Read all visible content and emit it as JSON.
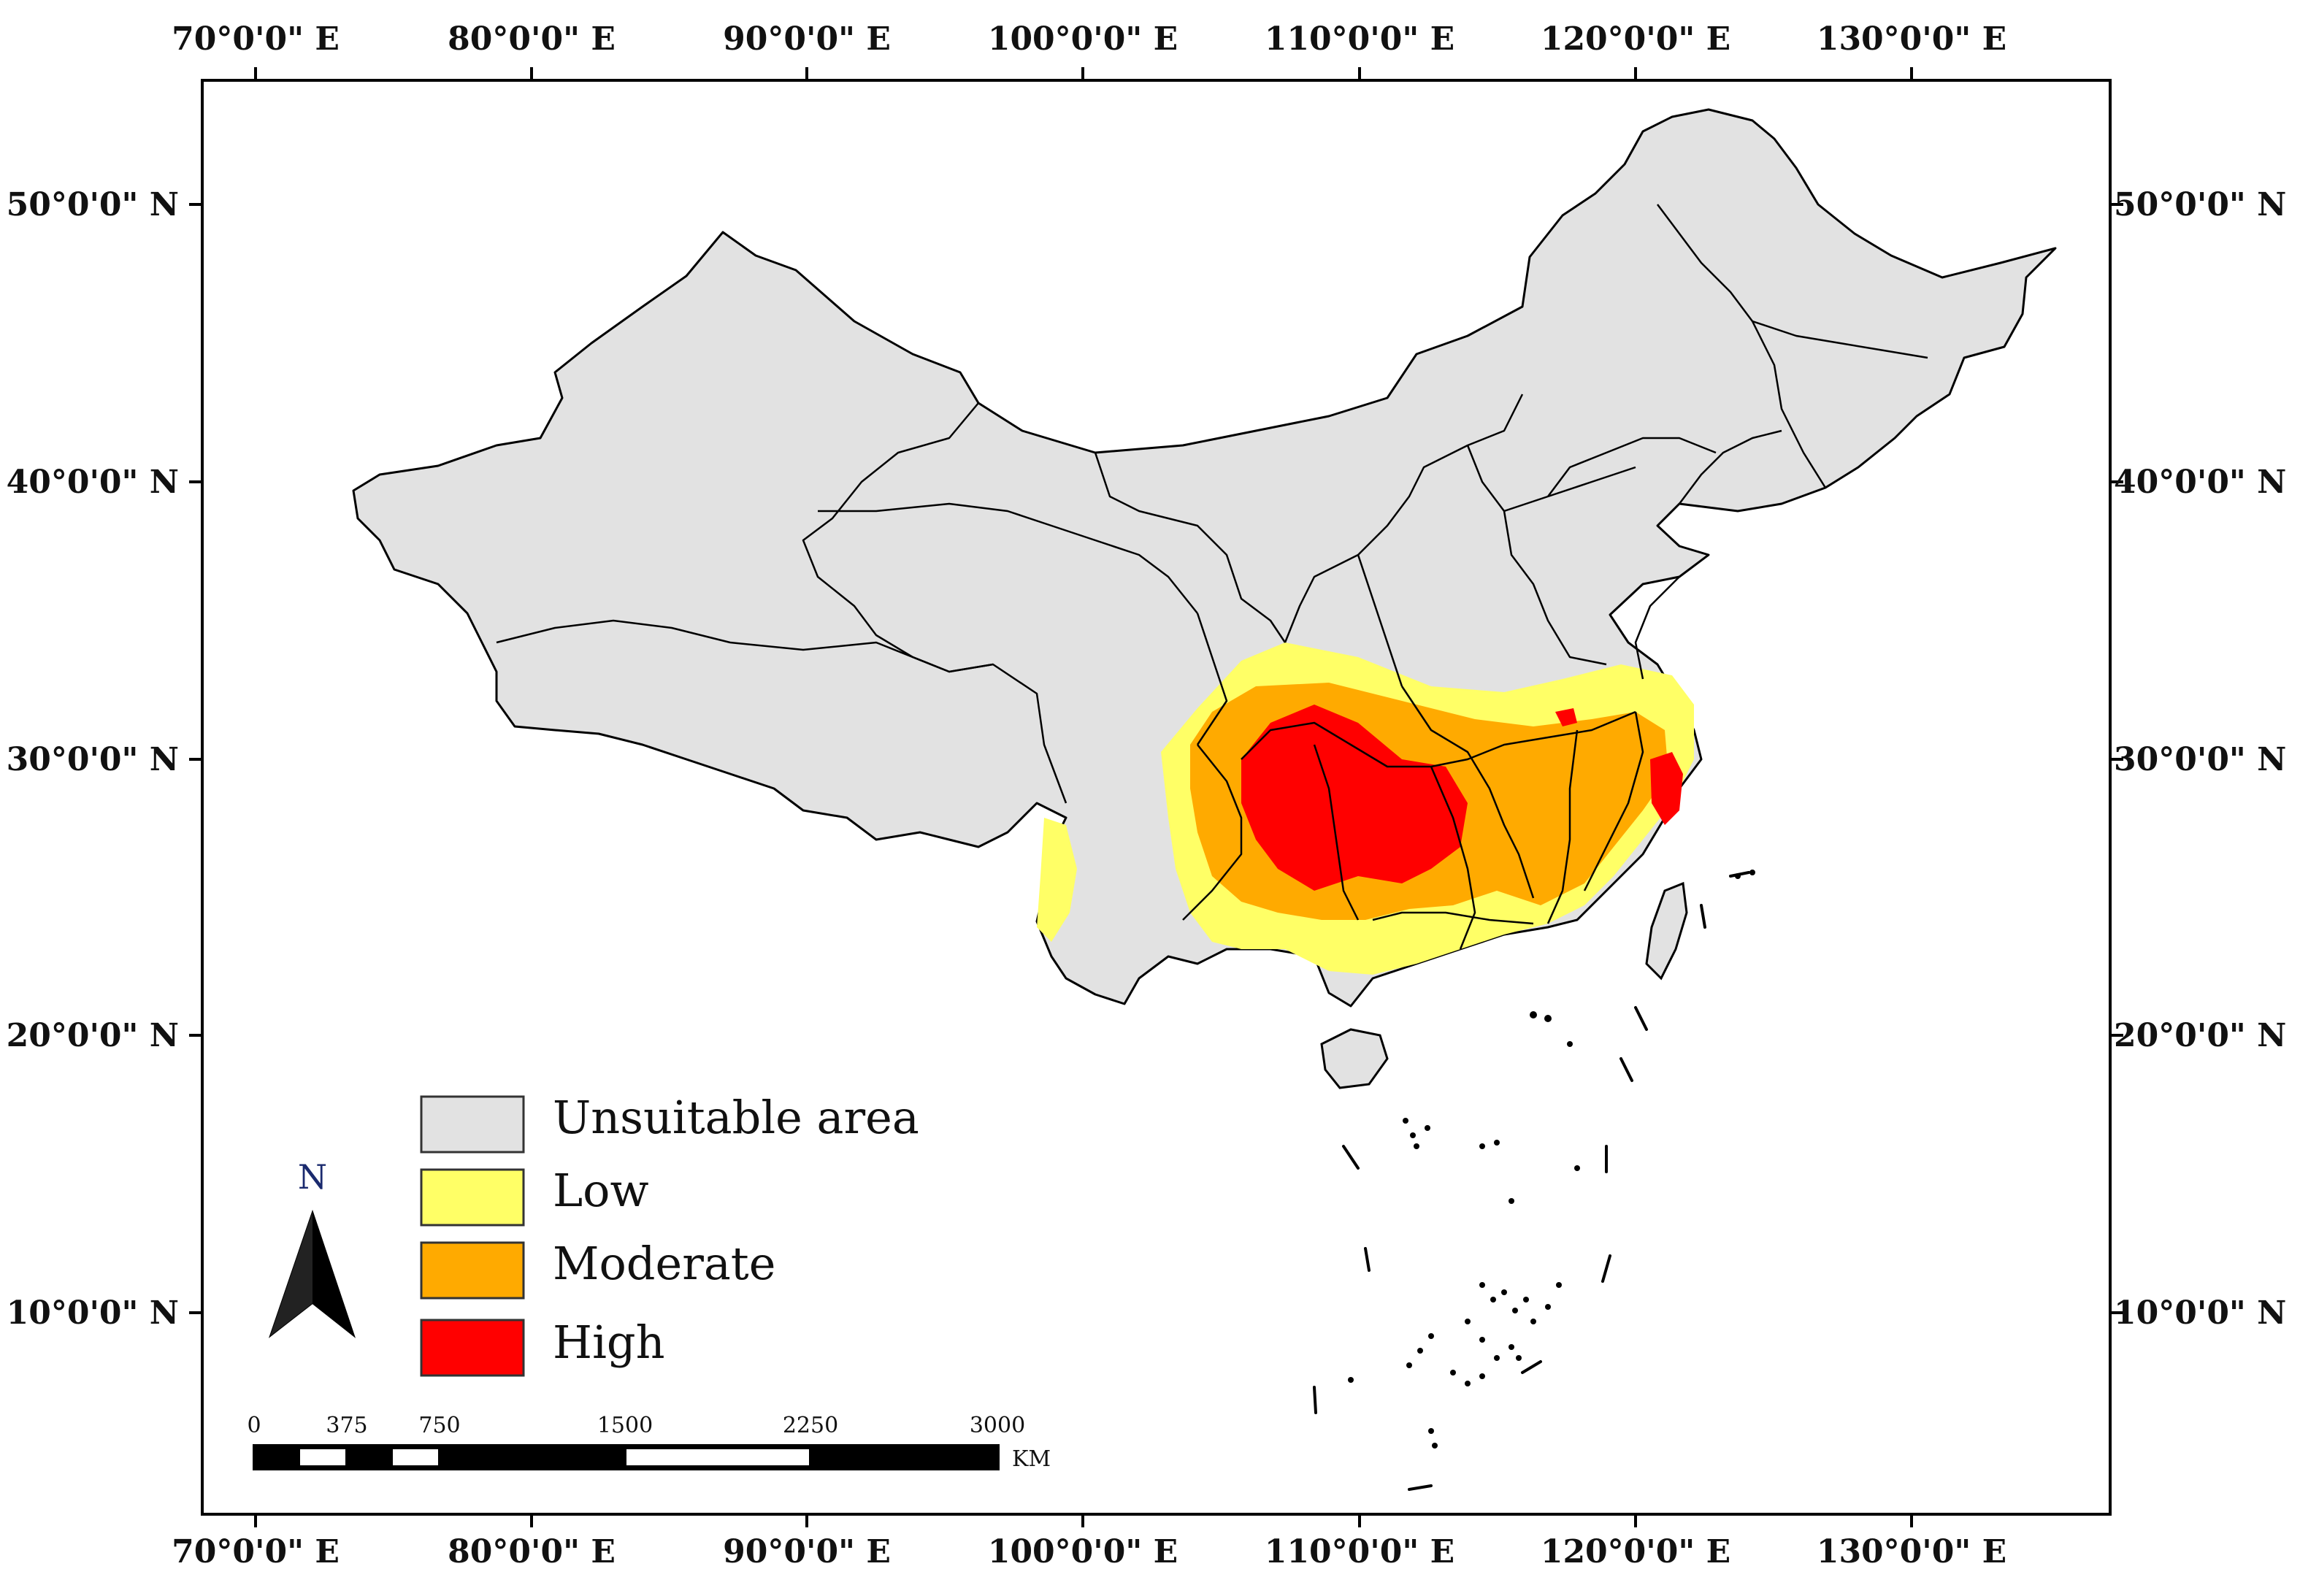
{
  "map": {
    "lon_labels": [
      "70°0'0\" E",
      "80°0'0\" E",
      "90°0'0\" E",
      "100°0'0\" E",
      "110°0'0\" E",
      "120°0'0\" E",
      "130°0'0\" E"
    ],
    "lat_labels": [
      "50°0'0\" N",
      "40°0'0\" N",
      "30°0'0\" N",
      "20°0'0\" N",
      "10°0'0\" N"
    ],
    "legend": [
      {
        "label": "Unsuitable area",
        "color": "#e2e2e2"
      },
      {
        "label": "Low",
        "color": "#ffff66"
      },
      {
        "label": "Moderate",
        "color": "#ffaa00"
      },
      {
        "label": "High",
        "color": "#ff0000"
      }
    ],
    "north_arrow": {
      "label": "N",
      "icon": "north-arrow-icon"
    },
    "scale_bar": {
      "ticks": [
        "0",
        "375",
        "750",
        "1500",
        "2250",
        "3000"
      ],
      "unit": "KM"
    }
  }
}
